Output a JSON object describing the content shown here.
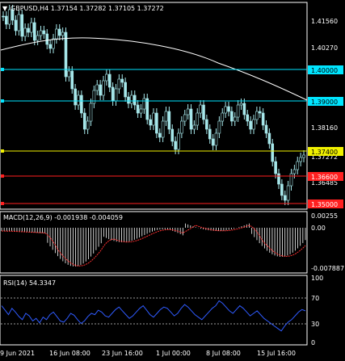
{
  "main": {
    "header": "GBPUSD,H4  1.37154 1.37282 1.37105 1.37272",
    "price_ticks": [
      "1.41560",
      "1.40270",
      "1.38160",
      "1.37272",
      "1.36485"
    ],
    "hlines": [
      {
        "price": "1.40000",
        "color": "#00e5ff"
      },
      {
        "price": "1.39000",
        "color": "#00e5ff"
      },
      {
        "price": "1.37400",
        "color": "#f0f000"
      },
      {
        "price": "1.36600",
        "color": "#ff2020"
      },
      {
        "price": "1.35000",
        "color": "#ff2020"
      }
    ],
    "ma_color": "#ffffff",
    "candle_color": "#a6e7ea"
  },
  "macd": {
    "label": "MACD(12,26,9) -0.001938 -0.004059",
    "ticks": [
      "0.00255",
      "0.00",
      "-0.007887"
    ],
    "hist_color": "#ffffff",
    "signal_color": "#ff3030"
  },
  "rsi": {
    "label": "RSI(14) 54.3347",
    "ticks": [
      "100",
      "70",
      "30",
      "0"
    ],
    "line_color": "#2f5bff"
  },
  "time_axis": [
    "9 Jun 2021",
    "16 Jun 08:00",
    "23 Jun 16:00",
    "1 Jul 00:00",
    "8 Jul 08:00",
    "15 Jul 16:00"
  ]
}
